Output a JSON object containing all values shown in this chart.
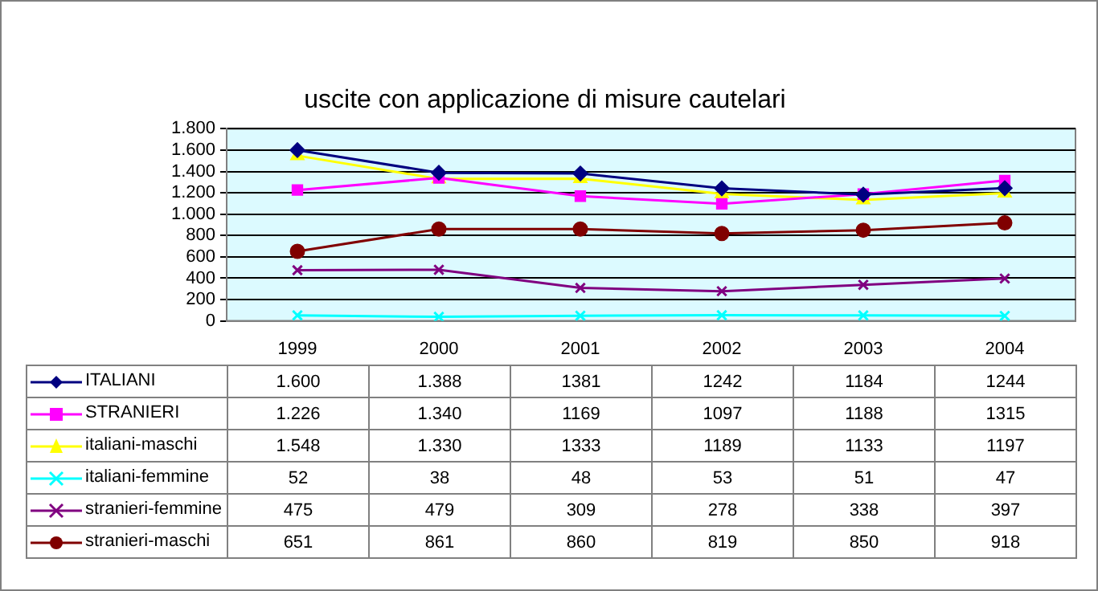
{
  "chart_data": {
    "type": "line",
    "title": "uscite con applicazione di misure cautelari",
    "categories": [
      "1999",
      "2000",
      "2001",
      "2002",
      "2003",
      "2004"
    ],
    "series": [
      {
        "name": "ITALIANI",
        "color": "#000080",
        "marker": "diamond",
        "values": [
          1600,
          1388,
          1381,
          1242,
          1184,
          1244
        ],
        "value_labels": [
          "1.600",
          "1.388",
          "1381",
          "1242",
          "1184",
          "1244"
        ]
      },
      {
        "name": "STRANIERI",
        "color": "#ff00ff",
        "marker": "square",
        "values": [
          1226,
          1340,
          1169,
          1097,
          1188,
          1315
        ],
        "value_labels": [
          "1.226",
          "1.340",
          "1169",
          "1097",
          "1188",
          "1315"
        ]
      },
      {
        "name": "italiani-maschi",
        "color": "#ffff00",
        "marker": "triangle",
        "values": [
          1548,
          1330,
          1333,
          1189,
          1133,
          1197
        ],
        "value_labels": [
          "1.548",
          "1.330",
          "1333",
          "1189",
          "1133",
          "1197"
        ]
      },
      {
        "name": "italiani-femmine",
        "color": "#00ffff",
        "marker": "cross",
        "values": [
          52,
          38,
          48,
          53,
          51,
          47
        ],
        "value_labels": [
          "52",
          "38",
          "48",
          "53",
          "51",
          "47"
        ]
      },
      {
        "name": "stranieri-femmine",
        "color": "#800080",
        "marker": "cross",
        "values": [
          475,
          479,
          309,
          278,
          338,
          397
        ],
        "value_labels": [
          "475",
          "479",
          "309",
          "278",
          "338",
          "397"
        ]
      },
      {
        "name": "stranieri-maschi",
        "color": "#800000",
        "marker": "circle",
        "values": [
          651,
          861,
          860,
          819,
          850,
          918
        ],
        "value_labels": [
          "651",
          "861",
          "860",
          "819",
          "850",
          "918"
        ]
      }
    ],
    "ylim": [
      0,
      1800
    ],
    "yticks": [
      0,
      200,
      400,
      600,
      800,
      {
        "value": 1000,
        "label": "1.000"
      },
      {
        "value": 1200,
        "label": "1.200"
      },
      {
        "value": 1400,
        "label": "1.400"
      },
      {
        "value": 1600,
        "label": "1.600"
      },
      {
        "value": 1800,
        "label": "1.800"
      }
    ],
    "grid": "y",
    "legend": "bottom",
    "line_style": "solid"
  }
}
